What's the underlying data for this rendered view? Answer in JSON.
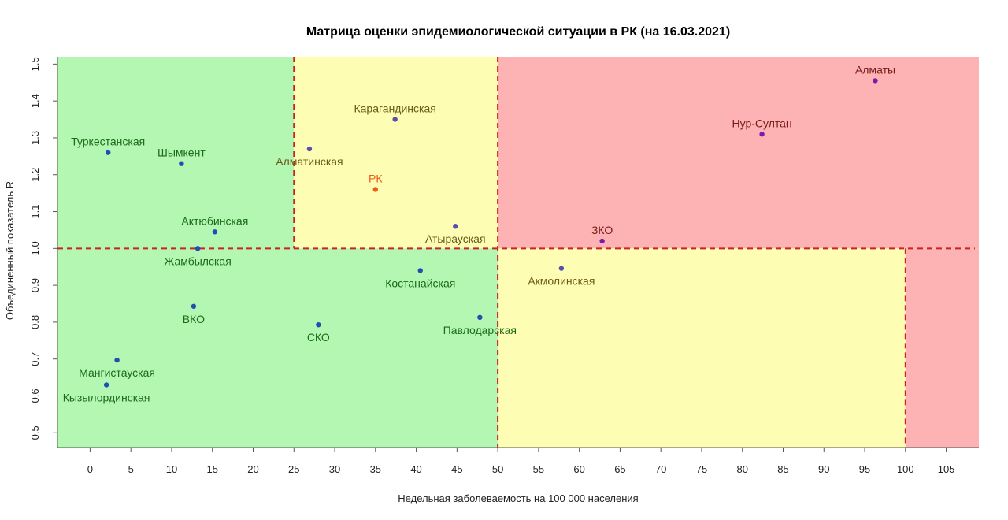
{
  "chart_data": {
    "type": "scatter",
    "title": "Матрица оценки эпидемиологической ситуации в РК (на 16.03.2021)",
    "xlabel": "Недельная заболеваемость на 100 000 населения",
    "ylabel": "Объединенный показатель R",
    "xlim": [
      -4,
      109
    ],
    "ylim": [
      0.46,
      1.52
    ],
    "xticks": [
      0,
      5,
      10,
      15,
      20,
      25,
      30,
      35,
      40,
      45,
      50,
      55,
      60,
      65,
      70,
      75,
      80,
      85,
      90,
      95,
      100,
      105
    ],
    "xtick_labels": [
      "0",
      "5",
      "10",
      "15",
      "20",
      "25",
      "30",
      "35",
      "40",
      "45",
      "50",
      "55",
      "60",
      "65",
      "70",
      "75",
      "80",
      "85",
      "90",
      "95",
      "100",
      "105"
    ],
    "yticks": [
      0.5,
      0.6,
      0.7,
      0.8,
      0.9,
      1.0,
      1.1,
      1.2,
      1.3,
      1.4,
      1.5
    ],
    "ytick_labels": [
      "0.5",
      "0.6",
      "0.7",
      "0.8",
      "0.9",
      "1.0",
      "1.1",
      "1.2",
      "1.3",
      "1.4",
      "1.5"
    ],
    "zones": [
      {
        "x": [
          -4,
          50
        ],
        "y": [
          0.46,
          1.52
        ],
        "color": "#b3f7b3"
      },
      {
        "x": [
          25,
          50
        ],
        "y": [
          1.0,
          1.52
        ],
        "color": "#fdfdb3"
      },
      {
        "x": [
          50,
          100
        ],
        "y": [
          0.46,
          1.0
        ],
        "color": "#fdfdb3"
      },
      {
        "x": [
          50,
          109
        ],
        "y": [
          1.0,
          1.52
        ],
        "color": "#fdb3b3"
      },
      {
        "x": [
          100,
          109
        ],
        "y": [
          0.46,
          1.0
        ],
        "color": "#fdb3b3"
      }
    ],
    "threshold_color": "#cc2222",
    "points": [
      {
        "label": "Туркестанская",
        "x": 2.2,
        "y": 1.26,
        "color": "#1f4fb0",
        "label_color": "#1a6b1a",
        "pos": "above"
      },
      {
        "label": "Шымкент",
        "x": 11.2,
        "y": 1.23,
        "color": "#1f4fb0",
        "label_color": "#1a6b1a",
        "pos": "above"
      },
      {
        "label": "Алматинская",
        "x": 26.9,
        "y": 1.27,
        "color": "#5a4fb0",
        "label_color": "#6b5a1a",
        "pos": "below"
      },
      {
        "label": "Карагандинская",
        "x": 37.4,
        "y": 1.35,
        "color": "#5a4fb0",
        "label_color": "#6b5a1a",
        "pos": "above"
      },
      {
        "label": "РК",
        "x": 35.0,
        "y": 1.16,
        "color": "#f05a1a",
        "label_color": "#f05a1a",
        "pos": "above"
      },
      {
        "label": "Актюбинская",
        "x": 15.3,
        "y": 1.045,
        "color": "#1f4fb0",
        "label_color": "#1a6b1a",
        "pos": "above"
      },
      {
        "label": "Жамбылская",
        "x": 13.2,
        "y": 1.0,
        "color": "#1f4fb0",
        "label_color": "#1a6b1a",
        "pos": "below"
      },
      {
        "label": "Атырауская",
        "x": 44.8,
        "y": 1.06,
        "color": "#5a4fb0",
        "label_color": "#6b5a1a",
        "pos": "below"
      },
      {
        "label": "Алматы",
        "x": 96.3,
        "y": 1.455,
        "color": "#7a1ab0",
        "label_color": "#7a1a1a",
        "pos": "above"
      },
      {
        "label": "Нур-Султан",
        "x": 82.4,
        "y": 1.31,
        "color": "#7a1ab0",
        "label_color": "#7a1a1a",
        "pos": "above"
      },
      {
        "label": "ЗКО",
        "x": 62.8,
        "y": 1.02,
        "color": "#7a1ab0",
        "label_color": "#7a1a1a",
        "pos": "above"
      },
      {
        "label": "Акмолинская",
        "x": 57.8,
        "y": 0.946,
        "color": "#5a4fb0",
        "label_color": "#6b5a1a",
        "pos": "below"
      },
      {
        "label": "Костанайская",
        "x": 40.5,
        "y": 0.94,
        "color": "#1f4fb0",
        "label_color": "#1a6b1a",
        "pos": "below"
      },
      {
        "label": "ВКО",
        "x": 12.7,
        "y": 0.843,
        "color": "#1f4fb0",
        "label_color": "#1a6b1a",
        "pos": "below"
      },
      {
        "label": "СКО",
        "x": 28.0,
        "y": 0.793,
        "color": "#1f4fb0",
        "label_color": "#1a6b1a",
        "pos": "below"
      },
      {
        "label": "Павлодарская",
        "x": 47.8,
        "y": 0.813,
        "color": "#1f4fb0",
        "label_color": "#1a6b1a",
        "pos": "below"
      },
      {
        "label": "Мангистауская",
        "x": 3.3,
        "y": 0.697,
        "color": "#1f4fb0",
        "label_color": "#1a6b1a",
        "pos": "below"
      },
      {
        "label": "Кызылординская",
        "x": 2.0,
        "y": 0.63,
        "color": "#1f4fb0",
        "label_color": "#1a6b1a",
        "pos": "below"
      }
    ]
  }
}
